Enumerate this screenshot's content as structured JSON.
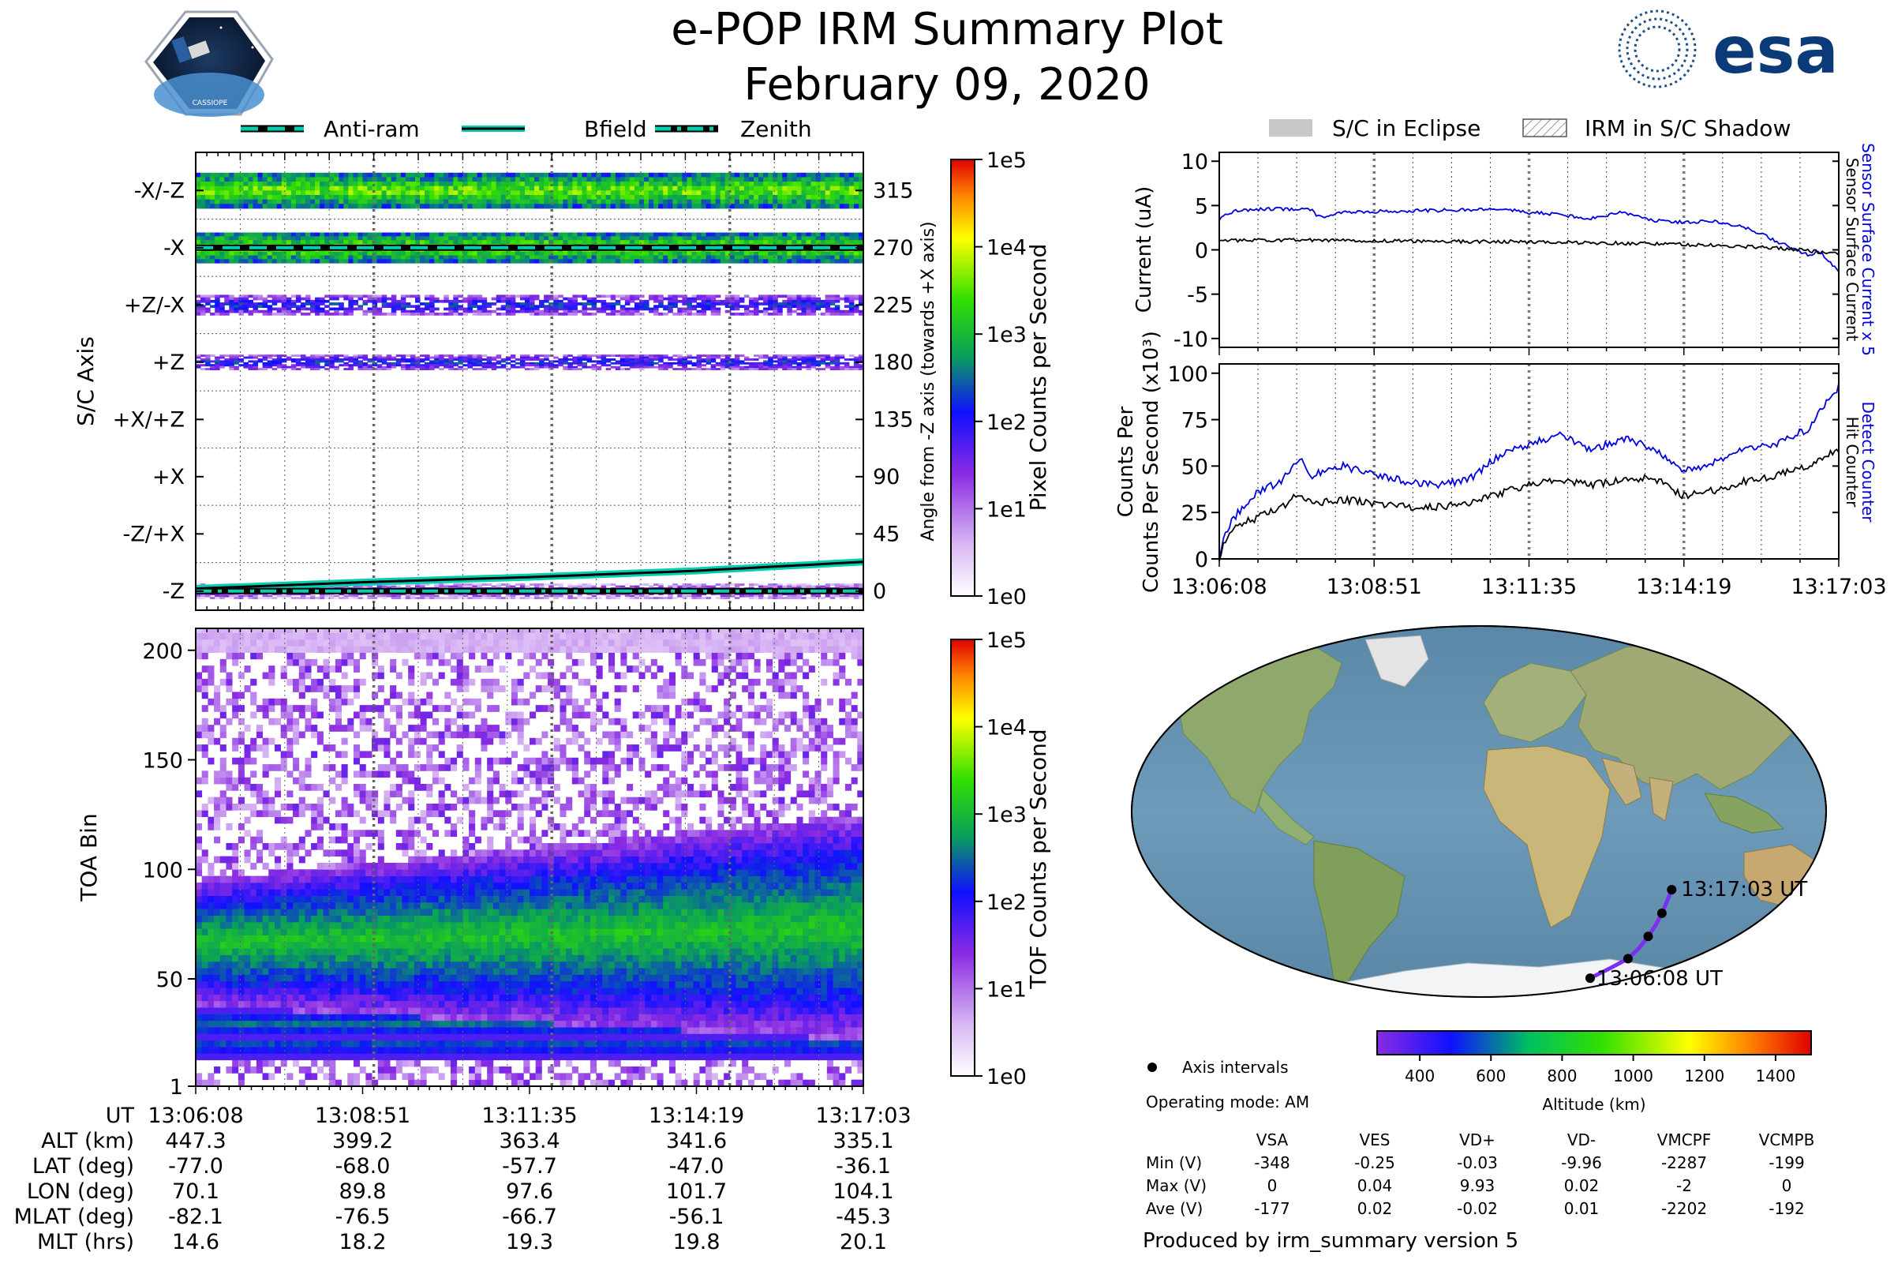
{
  "header": {
    "title": "e-POP IRM Summary Plot",
    "date": "February 09, 2020",
    "mission_logo_text": "CASSIOPE",
    "agency_logo_text": "esa"
  },
  "colors": {
    "accent_cyan": "#00d0b0",
    "current_blue": "#0000e0",
    "eclipse_gray": "#c8c8c8",
    "track_purple": "#7b2ff2"
  },
  "chart_data": [
    {
      "id": "sc_axis",
      "type": "heatmap",
      "ylabel": "S/C Axis",
      "ylabel_right": "Angle from -Z axis (towards +X axis)",
      "ytick_labels": [
        "-X/-Z",
        "-X",
        "+Z/-X",
        "+Z",
        "+X/+Z",
        "+X",
        "-Z/+X",
        "-Z"
      ],
      "right_ticks": [
        315,
        270,
        225,
        180,
        135,
        90,
        45,
        0
      ],
      "ylim": [
        -15,
        345
      ],
      "legend": [
        "Anti-ram",
        "Bfield",
        "Zenith"
      ],
      "colorbar_label": "Pixel Counts per Second",
      "colorbar_ticks": [
        "1e5",
        "1e4",
        "1e3",
        "1e2",
        "1e1",
        "1e0"
      ],
      "bands": [
        {
          "center": 315,
          "half_height": 14,
          "intensity": "high"
        },
        {
          "center": 270,
          "half_height": 12,
          "intensity": "high"
        },
        {
          "center": 225,
          "half_height": 8,
          "intensity": "medium"
        },
        {
          "center": 180,
          "half_height": 6,
          "intensity": "medium"
        },
        {
          "center": 0,
          "half_height": 6,
          "intensity": "low"
        }
      ],
      "series": [
        {
          "name": "Anti-ram",
          "style": "dashed",
          "t": [
            0,
            1
          ],
          "values": [
            270,
            270
          ]
        },
        {
          "name": "Bfield",
          "style": "solid",
          "t": [
            0,
            0.25,
            0.5,
            0.75,
            1
          ],
          "values": [
            2,
            7,
            11,
            16,
            23
          ]
        },
        {
          "name": "Zenith",
          "style": "dashdot",
          "t": [
            0,
            1
          ],
          "values": [
            0,
            0
          ]
        }
      ]
    },
    {
      "id": "toa",
      "type": "heatmap",
      "ylabel": "TOA Bin",
      "yticks": [
        1,
        50,
        100,
        150,
        200
      ],
      "ylim": [
        1,
        210
      ],
      "colorbar_label": "TOF Counts per Second",
      "colorbar_ticks": [
        "1e5",
        "1e4",
        "1e3",
        "1e2",
        "1e1",
        "1e0"
      ],
      "main_band": {
        "center_start": 65,
        "center_end": 72,
        "half_width_start": 18,
        "half_width_end": 32
      },
      "lower_bands": [
        {
          "center": 28,
          "half_width": 5
        },
        {
          "center": 18,
          "half_width": 3
        }
      ]
    },
    {
      "id": "current",
      "type": "line",
      "ylabel": "Current (uA)",
      "ylim": [
        -11,
        11
      ],
      "yticks": [
        10,
        5,
        0,
        -5,
        -10
      ],
      "right_labels": [
        "Sensor Surface Current x 5",
        "Sensor Surface Current"
      ],
      "legend": [
        "S/C in Eclipse",
        "IRM in S/C Shadow"
      ],
      "series": [
        {
          "name": "Sensor Surface Current x 5",
          "color": "blue",
          "t": [
            0,
            0.03,
            0.08,
            0.15,
            0.16,
            0.2,
            0.3,
            0.4,
            0.45,
            0.5,
            0.55,
            0.6,
            0.65,
            0.7,
            0.75,
            0.8,
            0.85,
            0.88,
            0.92,
            0.95,
            0.97,
            1
          ],
          "values": [
            3.5,
            4.5,
            4.6,
            4.6,
            3.7,
            4.2,
            4.4,
            4.5,
            4.7,
            4.2,
            4.0,
            3.5,
            4.3,
            3.3,
            3.1,
            3.3,
            2.5,
            1.6,
            0.3,
            -0.5,
            -0.3,
            -2.5
          ]
        },
        {
          "name": "Sensor Surface Current",
          "color": "black",
          "t": [
            0,
            0.1,
            0.3,
            0.5,
            0.7,
            0.8,
            0.9,
            1
          ],
          "values": [
            1.0,
            1.1,
            1.0,
            0.9,
            0.7,
            0.5,
            0.2,
            -0.4
          ]
        }
      ]
    },
    {
      "id": "counts",
      "type": "line",
      "ylabel": "Counts Per Second (x10³)",
      "ylim": [
        0,
        105
      ],
      "yticks": [
        100,
        75,
        50,
        25,
        0
      ],
      "xtick_labels": [
        "13:06:08",
        "13:08:51",
        "13:11:35",
        "13:14:19",
        "13:17:03"
      ],
      "right_labels": [
        "Detect Counter",
        "Hit Counter"
      ],
      "series": [
        {
          "name": "Detect Counter",
          "color": "blue",
          "t": [
            0,
            0.01,
            0.03,
            0.06,
            0.1,
            0.13,
            0.15,
            0.2,
            0.25,
            0.3,
            0.35,
            0.4,
            0.45,
            0.5,
            0.55,
            0.6,
            0.65,
            0.7,
            0.75,
            0.8,
            0.85,
            0.9,
            0.95,
            1
          ],
          "values": [
            0,
            15,
            25,
            35,
            42,
            55,
            45,
            50,
            45,
            42,
            40,
            42,
            55,
            62,
            67,
            58,
            65,
            60,
            47,
            52,
            60,
            62,
            70,
            93
          ]
        },
        {
          "name": "Hit Counter",
          "color": "black",
          "t": [
            0,
            0.01,
            0.03,
            0.06,
            0.1,
            0.13,
            0.15,
            0.2,
            0.25,
            0.3,
            0.35,
            0.4,
            0.45,
            0.5,
            0.55,
            0.6,
            0.65,
            0.7,
            0.75,
            0.8,
            0.85,
            0.9,
            0.95,
            1
          ],
          "values": [
            0,
            10,
            18,
            22,
            28,
            35,
            30,
            32,
            30,
            28,
            28,
            30,
            35,
            40,
            42,
            40,
            42,
            44,
            34,
            37,
            42,
            45,
            50,
            59
          ]
        }
      ]
    }
  ],
  "time_axis": {
    "row_labels": [
      "UT",
      "ALT (km)",
      "LAT (deg)",
      "LON (deg)",
      "MLAT (deg)",
      "MLT (hrs)"
    ],
    "columns": [
      [
        "13:06:08",
        "447.3",
        "-77.0",
        "70.1",
        "-82.1",
        "14.6"
      ],
      [
        "13:08:51",
        "399.2",
        "-68.0",
        "89.8",
        "-76.5",
        "18.2"
      ],
      [
        "13:11:35",
        "363.4",
        "-57.7",
        "97.6",
        "-66.7",
        "19.3"
      ],
      [
        "13:14:19",
        "341.6",
        "-47.0",
        "101.7",
        "-56.1",
        "19.8"
      ],
      [
        "13:17:03",
        "335.1",
        "-36.1",
        "104.1",
        "-45.3",
        "20.1"
      ]
    ]
  },
  "map": {
    "start_label": "13:06:08 UT",
    "end_label": "13:17:03 UT",
    "track_lat": [
      -77.0,
      -72.5,
      -68.0,
      -63.0,
      -57.7,
      -52.5,
      -47.0,
      -41.5,
      -36.1
    ],
    "track_lon": [
      70.1,
      80.5,
      89.8,
      94.5,
      97.6,
      100.0,
      101.7,
      103.0,
      104.1
    ],
    "interval_points": [
      0,
      2,
      4,
      6,
      8
    ]
  },
  "altitude_bar": {
    "label": "Altitude (km)",
    "ticks": [
      "400",
      "600",
      "800",
      "1000",
      "1200",
      "1400"
    ]
  },
  "info": {
    "axis_intervals_label": "Axis intervals",
    "operating_mode": "Operating mode: AM",
    "voltage_table": {
      "headers": [
        "",
        "VSA",
        "VES",
        "VD+",
        "VD-",
        "VMCPF",
        "VCMPB"
      ],
      "rows": [
        [
          "Min (V)",
          "-348",
          "-0.25",
          "-0.03",
          "-9.96",
          "-2287",
          "-199"
        ],
        [
          "Max (V)",
          "0",
          "0.04",
          "9.93",
          "0.02",
          "-2",
          "0"
        ],
        [
          "Ave (V)",
          "-177",
          "0.02",
          "-0.02",
          "0.01",
          "-2202",
          "-192"
        ]
      ]
    },
    "produced_by": "Produced by irm_summary version 5"
  }
}
